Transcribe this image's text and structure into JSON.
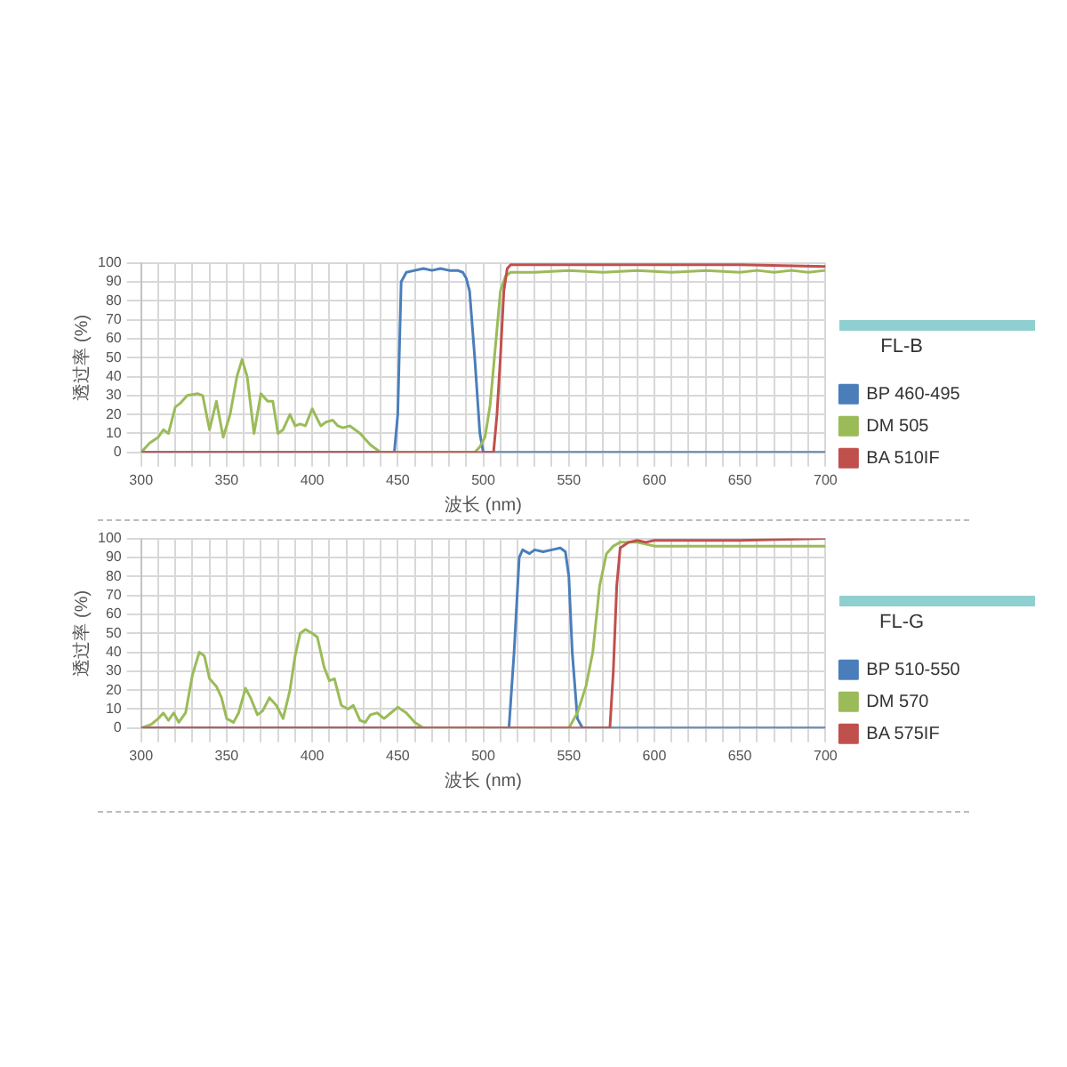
{
  "chart_data": [
    {
      "type": "line",
      "xlabel": "波长 (nm)",
      "ylabel": "透过率 (%)",
      "legend_title": "FL-B",
      "legend": "right",
      "grid": true,
      "marker": "none",
      "line_style": "solid",
      "xlim": [
        300,
        700
      ],
      "ylim": [
        0,
        100
      ],
      "xticks": [
        300,
        {
          "value": 310,
          "label": null
        },
        {
          "value": 320,
          "label": null
        },
        {
          "value": 330,
          "label": null
        },
        {
          "value": 340,
          "label": null
        },
        350,
        {
          "value": 360,
          "label": null
        },
        {
          "value": 370,
          "label": null
        },
        {
          "value": 380,
          "label": null
        },
        {
          "value": 390,
          "label": null
        },
        400,
        {
          "value": 410,
          "label": null
        },
        {
          "value": 420,
          "label": null
        },
        {
          "value": 430,
          "label": null
        },
        {
          "value": 440,
          "label": null
        },
        450,
        {
          "value": 460,
          "label": null
        },
        {
          "value": 470,
          "label": null
        },
        {
          "value": 480,
          "label": null
        },
        {
          "value": 490,
          "label": null
        },
        500,
        {
          "value": 510,
          "label": null
        },
        {
          "value": 520,
          "label": null
        },
        {
          "value": 530,
          "label": null
        },
        {
          "value": 540,
          "label": null
        },
        550,
        {
          "value": 560,
          "label": null
        },
        {
          "value": 570,
          "label": null
        },
        {
          "value": 580,
          "label": null
        },
        {
          "value": 590,
          "label": null
        },
        600,
        {
          "value": 610,
          "label": null
        },
        {
          "value": 620,
          "label": null
        },
        {
          "value": 630,
          "label": null
        },
        {
          "value": 640,
          "label": null
        },
        650,
        {
          "value": 660,
          "label": null
        },
        {
          "value": 670,
          "label": null
        },
        {
          "value": 680,
          "label": null
        },
        {
          "value": 690,
          "label": null
        },
        700
      ],
      "yticks": [
        0,
        10,
        20,
        30,
        40,
        50,
        60,
        70,
        80,
        90,
        100
      ],
      "series": [
        {
          "name": "BP 460-495",
          "color": "#4a7ebb",
          "x": [
            300,
            448,
            450,
            452,
            455,
            460,
            465,
            470,
            475,
            480,
            485,
            488,
            490,
            492,
            495,
            498,
            500,
            700
          ],
          "values": [
            0,
            0,
            20,
            90,
            95,
            96,
            97,
            96,
            97,
            96,
            96,
            95,
            92,
            85,
            50,
            10,
            0,
            0
          ]
        },
        {
          "name": "DM 505",
          "color": "#9bbb59",
          "x": [
            300,
            305,
            310,
            313,
            316,
            320,
            323,
            327,
            333,
            336,
            340,
            344,
            348,
            352,
            356,
            359,
            362,
            366,
            370,
            374,
            377,
            380,
            383,
            387,
            390,
            393,
            396,
            400,
            405,
            408,
            412,
            415,
            418,
            422,
            428,
            434,
            440,
            495,
            498,
            501,
            504,
            507,
            510,
            513,
            516,
            530,
            550,
            570,
            590,
            610,
            630,
            650,
            660,
            670,
            680,
            690,
            700
          ],
          "values": [
            0,
            5,
            8,
            12,
            10,
            24,
            26,
            30,
            31,
            30,
            12,
            27,
            8,
            20,
            40,
            49,
            40,
            10,
            31,
            27,
            27,
            10,
            12,
            20,
            14,
            15,
            14,
            23,
            14,
            16,
            17,
            14,
            13,
            14,
            10,
            4,
            0,
            0,
            3,
            8,
            25,
            55,
            85,
            93,
            95,
            95,
            96,
            95,
            96,
            95,
            96,
            95,
            96,
            95,
            96,
            95,
            96
          ]
        },
        {
          "name": "BA 510IF",
          "color": "#c0504d",
          "x": [
            300,
            506,
            508,
            510,
            512,
            514,
            516,
            550,
            600,
            650,
            700
          ],
          "values": [
            0,
            0,
            20,
            50,
            85,
            97,
            99,
            99,
            99,
            99,
            98
          ]
        }
      ]
    },
    {
      "type": "line",
      "xlabel": "波长 (nm)",
      "ylabel": "透过率 (%)",
      "legend_title": "FL-G",
      "legend": "right",
      "grid": true,
      "marker": "none",
      "line_style": "solid",
      "xlim": [
        300,
        700
      ],
      "ylim": [
        0,
        100
      ],
      "xticks": [
        300,
        {
          "value": 310,
          "label": null
        },
        {
          "value": 320,
          "label": null
        },
        {
          "value": 330,
          "label": null
        },
        {
          "value": 340,
          "label": null
        },
        350,
        {
          "value": 360,
          "label": null
        },
        {
          "value": 370,
          "label": null
        },
        {
          "value": 380,
          "label": null
        },
        {
          "value": 390,
          "label": null
        },
        400,
        {
          "value": 410,
          "label": null
        },
        {
          "value": 420,
          "label": null
        },
        {
          "value": 430,
          "label": null
        },
        {
          "value": 440,
          "label": null
        },
        450,
        {
          "value": 460,
          "label": null
        },
        {
          "value": 470,
          "label": null
        },
        {
          "value": 480,
          "label": null
        },
        {
          "value": 490,
          "label": null
        },
        500,
        {
          "value": 510,
          "label": null
        },
        {
          "value": 520,
          "label": null
        },
        {
          "value": 530,
          "label": null
        },
        {
          "value": 540,
          "label": null
        },
        550,
        {
          "value": 560,
          "label": null
        },
        {
          "value": 570,
          "label": null
        },
        {
          "value": 580,
          "label": null
        },
        {
          "value": 590,
          "label": null
        },
        600,
        {
          "value": 610,
          "label": null
        },
        {
          "value": 620,
          "label": null
        },
        {
          "value": 630,
          "label": null
        },
        {
          "value": 640,
          "label": null
        },
        650,
        {
          "value": 660,
          "label": null
        },
        {
          "value": 670,
          "label": null
        },
        {
          "value": 680,
          "label": null
        },
        {
          "value": 690,
          "label": null
        },
        700
      ],
      "yticks": [
        0,
        10,
        20,
        30,
        40,
        50,
        60,
        70,
        80,
        90,
        100
      ],
      "series": [
        {
          "name": "BP 510-550",
          "color": "#4a7ebb",
          "x": [
            300,
            515,
            518,
            521,
            523,
            527,
            530,
            535,
            540,
            545,
            548,
            550,
            552,
            555,
            558,
            700
          ],
          "values": [
            0,
            0,
            40,
            90,
            94,
            92,
            94,
            93,
            94,
            95,
            93,
            80,
            40,
            5,
            0,
            0
          ]
        },
        {
          "name": "DM 570",
          "color": "#9bbb59",
          "x": [
            300,
            306,
            310,
            313,
            316,
            319,
            322,
            326,
            330,
            334,
            337,
            340,
            344,
            347,
            350,
            354,
            357,
            361,
            364,
            368,
            371,
            375,
            379,
            383,
            387,
            390,
            393,
            396,
            400,
            403,
            407,
            410,
            413,
            417,
            421,
            424,
            428,
            431,
            434,
            438,
            442,
            446,
            450,
            455,
            460,
            465,
            550,
            555,
            560,
            564,
            568,
            572,
            576,
            580,
            590,
            600,
            700
          ],
          "values": [
            0,
            2,
            5,
            8,
            4,
            8,
            3,
            8,
            28,
            40,
            38,
            26,
            22,
            16,
            5,
            3,
            8,
            21,
            16,
            7,
            9,
            16,
            12,
            5,
            20,
            38,
            50,
            52,
            50,
            48,
            32,
            25,
            26,
            12,
            10,
            12,
            4,
            3,
            7,
            8,
            5,
            8,
            11,
            8,
            3,
            0,
            0,
            8,
            22,
            40,
            75,
            92,
            96,
            98,
            98,
            96,
            96
          ]
        },
        {
          "name": "BA 575IF",
          "color": "#c0504d",
          "x": [
            300,
            574,
            576,
            578,
            580,
            585,
            590,
            595,
            600,
            620,
            650,
            700
          ],
          "values": [
            0,
            0,
            30,
            75,
            95,
            98,
            99,
            98,
            99,
            99,
            99,
            100
          ]
        }
      ]
    }
  ]
}
